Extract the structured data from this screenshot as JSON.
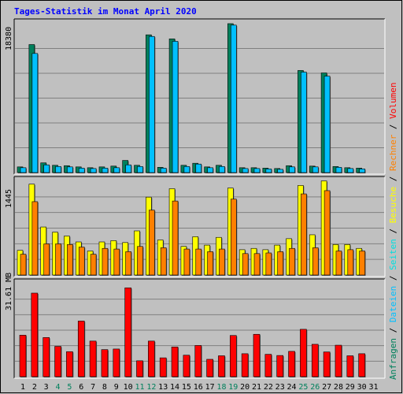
{
  "title": "Tages-Statistik im Monat April 2020",
  "colors": {
    "background": "#c0c0c0",
    "anfragen": "#00805c",
    "dateien": "#00c0ff",
    "seiten": "#00e0e0",
    "besuche": "#ffff00",
    "rechner": "#ff8000",
    "volumen": "#ff0000",
    "weekday_label": "#000000",
    "weekend_label": "#00805c"
  },
  "chart_data": [
    {
      "type": "bar",
      "panel": "hits",
      "y_max_label": "18380",
      "ylim": [
        0,
        18380
      ],
      "categories": [
        "1",
        "2",
        "3",
        "4",
        "5",
        "6",
        "7",
        "8",
        "9",
        "10",
        "11",
        "12",
        "13",
        "14",
        "15",
        "16",
        "17",
        "18",
        "19",
        "20",
        "21",
        "22",
        "23",
        "24",
        "25",
        "26",
        "27",
        "28",
        "29",
        "30",
        "31"
      ],
      "series": [
        {
          "name": "Anfragen",
          "values": [
            700,
            15800,
            1200,
            900,
            850,
            700,
            600,
            700,
            800,
            1500,
            900,
            17000,
            650,
            16500,
            900,
            1150,
            700,
            900,
            18380,
            600,
            600,
            550,
            500,
            850,
            12600,
            800,
            12300,
            750,
            600,
            550,
            0
          ]
        },
        {
          "name": "Dateien",
          "values": [
            600,
            14700,
            950,
            750,
            700,
            550,
            500,
            550,
            600,
            950,
            750,
            16800,
            550,
            16200,
            750,
            1050,
            600,
            750,
            18200,
            500,
            500,
            450,
            400,
            700,
            12400,
            700,
            11900,
            650,
            500,
            450,
            0
          ]
        }
      ],
      "legend_labels": [
        "Anfragen",
        "Dateien"
      ]
    },
    {
      "type": "bar",
      "panel": "visits",
      "y_max_label": "1445",
      "ylim": [
        0,
        1445
      ],
      "categories": [
        "1",
        "2",
        "3",
        "4",
        "5",
        "6",
        "7",
        "8",
        "9",
        "10",
        "11",
        "12",
        "13",
        "14",
        "15",
        "16",
        "17",
        "18",
        "19",
        "20",
        "21",
        "22",
        "23",
        "24",
        "25",
        "26",
        "27",
        "28",
        "29",
        "30",
        "31"
      ],
      "series": [
        {
          "name": "Seiten",
          "values": [
            380,
            1400,
            740,
            660,
            600,
            510,
            370,
            510,
            530,
            500,
            680,
            1200,
            540,
            1330,
            440,
            590,
            460,
            580,
            1340,
            390,
            410,
            390,
            460,
            560,
            1380,
            620,
            1450,
            470,
            470,
            410,
            0
          ]
        },
        {
          "name": "Besuche",
          "values": [
            320,
            1130,
            480,
            480,
            470,
            430,
            320,
            410,
            400,
            360,
            440,
            1000,
            420,
            1140,
            400,
            400,
            360,
            400,
            1170,
            330,
            330,
            340,
            360,
            410,
            1250,
            420,
            1300,
            370,
            390,
            370,
            0
          ]
        }
      ],
      "legend_labels": [
        "Seiten",
        "Besuche"
      ]
    },
    {
      "type": "bar",
      "panel": "volume",
      "y_max_label": "31.61 MB",
      "ylim": [
        0,
        31.61
      ],
      "categories": [
        "1",
        "2",
        "3",
        "4",
        "5",
        "6",
        "7",
        "8",
        "9",
        "10",
        "11",
        "12",
        "13",
        "14",
        "15",
        "16",
        "17",
        "18",
        "19",
        "20",
        "21",
        "22",
        "23",
        "24",
        "25",
        "26",
        "27",
        "28",
        "29",
        "30",
        "31"
      ],
      "series": [
        {
          "name": "Volumen",
          "values": [
            14.1,
            28.4,
            13.3,
            10.3,
            8.5,
            18.9,
            12.1,
            9.2,
            9.4,
            30.2,
            5.4,
            12.1,
            6.4,
            10.1,
            7.3,
            10.6,
            5.9,
            7.1,
            14.0,
            7.8,
            14.4,
            7.6,
            7.2,
            8.6,
            16.1,
            11.0,
            8.4,
            10.7,
            7.1,
            7.8,
            0
          ]
        }
      ],
      "legend_labels": [
        "Rechner",
        "Volumen"
      ]
    }
  ],
  "x_labels": [
    "1",
    "2",
    "3",
    "4",
    "5",
    "6",
    "7",
    "8",
    "9",
    "10",
    "11",
    "12",
    "13",
    "14",
    "15",
    "16",
    "17",
    "18",
    "19",
    "20",
    "21",
    "22",
    "23",
    "24",
    "25",
    "26",
    "27",
    "28",
    "29",
    "30",
    "31"
  ],
  "weekend_days": [
    "4",
    "5",
    "11",
    "12",
    "18",
    "19",
    "25",
    "26"
  ],
  "right_legend": [
    {
      "text": "Anfragen",
      "color": "#00805c"
    },
    {
      "text": "Dateien",
      "color": "#00c0ff"
    },
    {
      "text": "Seiten",
      "color": "#00e0e0"
    },
    {
      "text": "Besuche",
      "color": "#ffff00"
    },
    {
      "text": "Rechner",
      "color": "#ff8000"
    },
    {
      "text": "Volumen",
      "color": "#ff0000"
    }
  ]
}
